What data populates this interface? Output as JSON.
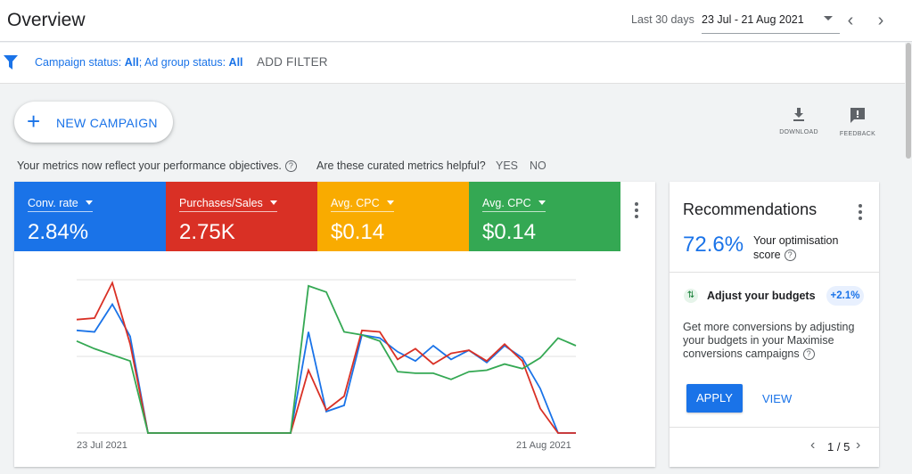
{
  "header": {
    "title": "Overview",
    "date_label": "Last 30 days",
    "date_range": "23 Jul - 21 Aug 2021",
    "prev_icon": "chevron-left",
    "next_icon": "chevron-right"
  },
  "filters": {
    "icon": "filter-icon",
    "campaign_status_label": "Campaign status:",
    "campaign_status_value": "All",
    "separator": ";",
    "ad_group_status_label": "Ad group status:",
    "ad_group_status_value": "All",
    "add_filter_label": "ADD FILTER"
  },
  "actions": {
    "new_campaign_label": "NEW CAMPAIGN",
    "download_label": "DOWNLOAD",
    "feedback_label": "FEEDBACK"
  },
  "notice": {
    "text": "Your metrics now reflect your performance objectives.",
    "question": "Are these curated metrics helpful?",
    "yes_label": "YES",
    "no_label": "NO"
  },
  "metrics": [
    {
      "name": "Conv. rate",
      "value": "2.84%",
      "color": "#1a73e8"
    },
    {
      "name": "Purchases/Sales",
      "value": "2.75K",
      "color": "#d93025"
    },
    {
      "name": "Avg. CPC",
      "value": "$0.14",
      "color": "#f9ab00"
    },
    {
      "name": "Avg. CPC",
      "value": "$0.14",
      "color": "#34a853"
    }
  ],
  "chart_data": {
    "type": "line",
    "x_start_label": "23 Jul 2021",
    "x_end_label": "21 Aug 2021",
    "grid": true,
    "ylim": [
      0,
      1
    ],
    "series": [
      {
        "color": "#1a73e8",
        "values": [
          0.67,
          0.66,
          0.84,
          0.63,
          0,
          0,
          0,
          0,
          0,
          0,
          0,
          0,
          0,
          0.66,
          0.14,
          0.18,
          0.64,
          0.62,
          0.53,
          0.47,
          0.57,
          0.48,
          0.54,
          0.46,
          0.57,
          0.49,
          0.29,
          0,
          0
        ]
      },
      {
        "color": "#d93025",
        "values": [
          0.74,
          0.75,
          0.98,
          0.58,
          0,
          0,
          0,
          0,
          0,
          0,
          0,
          0,
          0,
          0.41,
          0.15,
          0.24,
          0.67,
          0.66,
          0.48,
          0.55,
          0.45,
          0.52,
          0.54,
          0.47,
          0.58,
          0.47,
          0.16,
          0,
          0
        ]
      },
      {
        "color": "#34a853",
        "values": [
          0.6,
          0.55,
          0.51,
          0.47,
          0,
          0,
          0,
          0,
          0,
          0,
          0,
          0,
          0,
          0.96,
          0.92,
          0.66,
          0.64,
          0.6,
          0.4,
          0.39,
          0.39,
          0.35,
          0.4,
          0.41,
          0.45,
          0.42,
          0.49,
          0.62,
          0.57
        ]
      }
    ]
  },
  "recommendations": {
    "title": "Recommendations",
    "score": "72.6%",
    "score_label": "Your optimisation score",
    "item_title": "Adjust your budgets",
    "item_badge": "+2.1%",
    "item_description": "Get more conversions by adjusting your budgets in your Maximise conversions campaigns",
    "apply_label": "APPLY",
    "view_label": "VIEW",
    "pager": "1 / 5"
  }
}
